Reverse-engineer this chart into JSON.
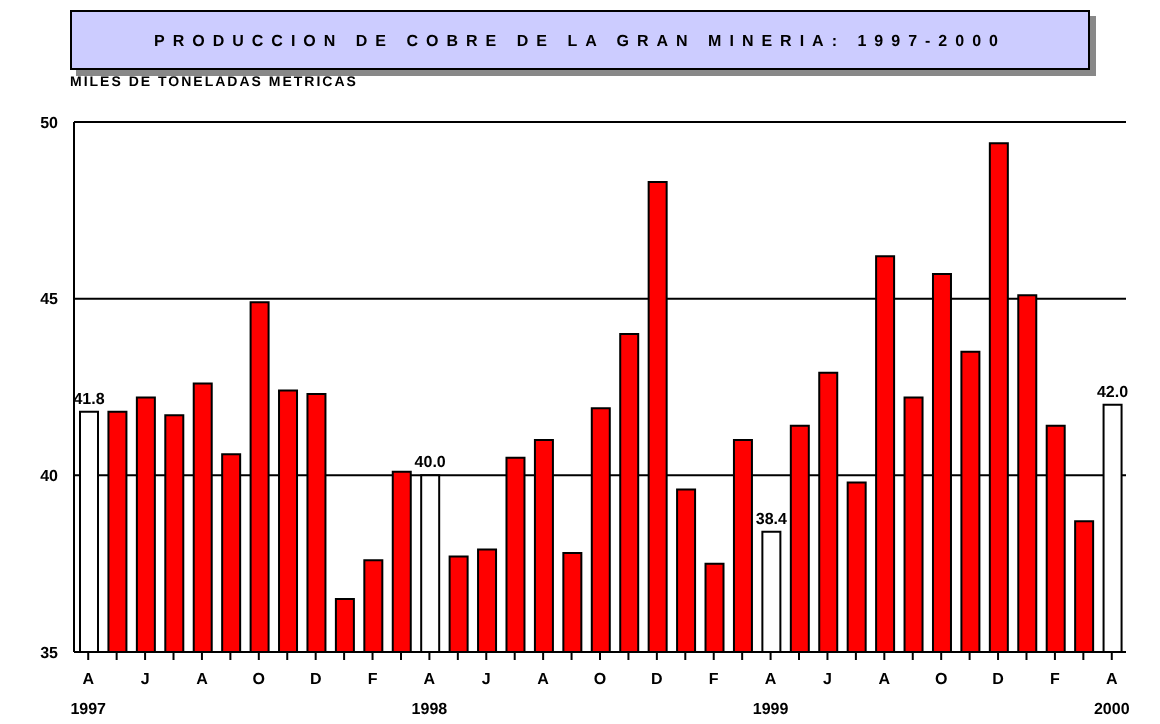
{
  "chart_data": {
    "type": "bar",
    "title": "PRODUCCION DE COBRE DE LA GRAN MINERIA: 1997-2000",
    "ylabel": "MILES DE TONELADAS METRICAS",
    "categories": [
      "A\n1997",
      null,
      "J",
      null,
      "A",
      null,
      "O",
      null,
      "D",
      null,
      "F",
      null,
      "A\n1998",
      null,
      "J",
      null,
      "A",
      null,
      "O",
      null,
      "D",
      null,
      "F",
      null,
      "A\n1999",
      null,
      "J",
      null,
      "A",
      null,
      "O",
      null,
      "D",
      null,
      "F",
      null,
      "A\n2000"
    ],
    "values": [
      41.8,
      41.8,
      42.2,
      41.7,
      42.6,
      40.6,
      44.9,
      42.4,
      42.3,
      36.5,
      37.6,
      40.1,
      40.0,
      37.7,
      37.9,
      40.5,
      41.0,
      37.8,
      41.9,
      44.0,
      48.3,
      39.6,
      37.5,
      41.0,
      38.4,
      41.4,
      42.9,
      39.8,
      46.2,
      42.2,
      45.7,
      43.5,
      49.4,
      45.1,
      41.4,
      38.7,
      42.0
    ],
    "colors": [
      "#ffffff",
      "#ff0000",
      "#ff0000",
      "#ff0000",
      "#ff0000",
      "#ff0000",
      "#ff0000",
      "#ff0000",
      "#ff0000",
      "#ff0000",
      "#ff0000",
      "#ff0000",
      "#ffffff",
      "#ff0000",
      "#ff0000",
      "#ff0000",
      "#ff0000",
      "#ff0000",
      "#ff0000",
      "#ff0000",
      "#ff0000",
      "#ff0000",
      "#ff0000",
      "#ff0000",
      "#ffffff",
      "#ff0000",
      "#ff0000",
      "#ff0000",
      "#ff0000",
      "#ff0000",
      "#ff0000",
      "#ff0000",
      "#ff0000",
      "#ff0000",
      "#ff0000",
      "#ff0000",
      "#ffffff"
    ],
    "value_labels": [
      "41.8",
      null,
      null,
      null,
      null,
      null,
      null,
      null,
      null,
      null,
      null,
      null,
      "40.0",
      null,
      null,
      null,
      null,
      null,
      null,
      null,
      null,
      null,
      null,
      null,
      "38.4",
      null,
      null,
      null,
      null,
      null,
      null,
      null,
      null,
      null,
      null,
      null,
      "42.0"
    ],
    "ylim": [
      35,
      50
    ],
    "yticks": [
      35,
      40,
      45,
      50
    ],
    "grid": "y",
    "legend": false
  }
}
